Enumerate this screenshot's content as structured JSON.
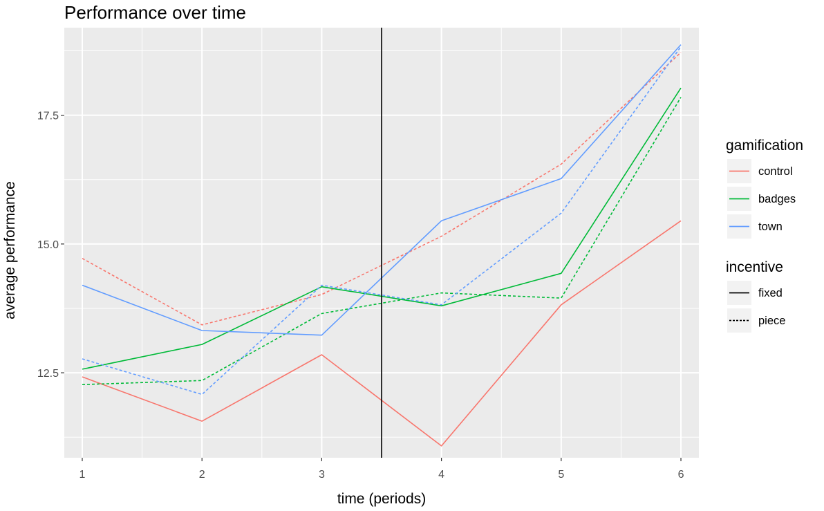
{
  "chart_data": {
    "type": "line",
    "title": "Performance over time",
    "xlabel": "time (periods)",
    "ylabel": "average performance",
    "xlim": [
      0.85,
      6.15
    ],
    "ylim": [
      10.85,
      19.2
    ],
    "x_ticks": [
      1,
      2,
      3,
      4,
      5,
      6
    ],
    "x_tick_labels": [
      "1",
      "2",
      "3",
      "4",
      "5",
      "6"
    ],
    "y_ticks": [
      12.5,
      15.0,
      17.5
    ],
    "y_tick_labels": [
      "12.5",
      "15.0",
      "17.5"
    ],
    "grid": true,
    "vline": {
      "x": 3.5,
      "color": "#000000"
    },
    "x": [
      1,
      2,
      3,
      4,
      5,
      6
    ],
    "series": [
      {
        "name": "control",
        "gamification": "control",
        "incentive": "fixed",
        "color": "#F8766D",
        "dash": "solid",
        "values": [
          12.42,
          11.56,
          12.85,
          11.08,
          13.82,
          15.45
        ]
      },
      {
        "name": "control",
        "gamification": "control",
        "incentive": "piece",
        "color": "#F8766D",
        "dash": "dashed",
        "values": [
          14.72,
          13.43,
          14.02,
          15.15,
          16.55,
          18.72
        ]
      },
      {
        "name": "badges",
        "gamification": "badges",
        "incentive": "fixed",
        "color": "#00BA38",
        "dash": "solid",
        "values": [
          12.57,
          13.05,
          14.17,
          13.8,
          14.43,
          18.03
        ]
      },
      {
        "name": "badges",
        "gamification": "badges",
        "incentive": "piece",
        "color": "#00BA38",
        "dash": "dashed",
        "values": [
          12.27,
          12.35,
          13.65,
          14.05,
          13.95,
          17.85
        ]
      },
      {
        "name": "town",
        "gamification": "town",
        "incentive": "fixed",
        "color": "#619CFF",
        "dash": "solid",
        "values": [
          14.2,
          13.32,
          13.23,
          15.45,
          16.27,
          18.87
        ]
      },
      {
        "name": "town",
        "gamification": "town",
        "incentive": "piece",
        "color": "#619CFF",
        "dash": "dashed",
        "values": [
          12.77,
          12.08,
          14.2,
          13.82,
          15.6,
          18.83
        ]
      }
    ],
    "legend": {
      "placement": "right",
      "groups": [
        {
          "title": "gamification",
          "entries": [
            {
              "label": "control",
              "color": "#F8766D",
              "dash": "solid"
            },
            {
              "label": "badges",
              "color": "#00BA38",
              "dash": "solid"
            },
            {
              "label": "town",
              "color": "#619CFF",
              "dash": "solid"
            }
          ]
        },
        {
          "title": "incentive",
          "entries": [
            {
              "label": "fixed",
              "color": "#000000",
              "dash": "solid"
            },
            {
              "label": "piece",
              "color": "#000000",
              "dash": "dashed"
            }
          ]
        }
      ]
    },
    "panel_background": "#EBEBEB",
    "grid_color": "#FFFFFF"
  }
}
